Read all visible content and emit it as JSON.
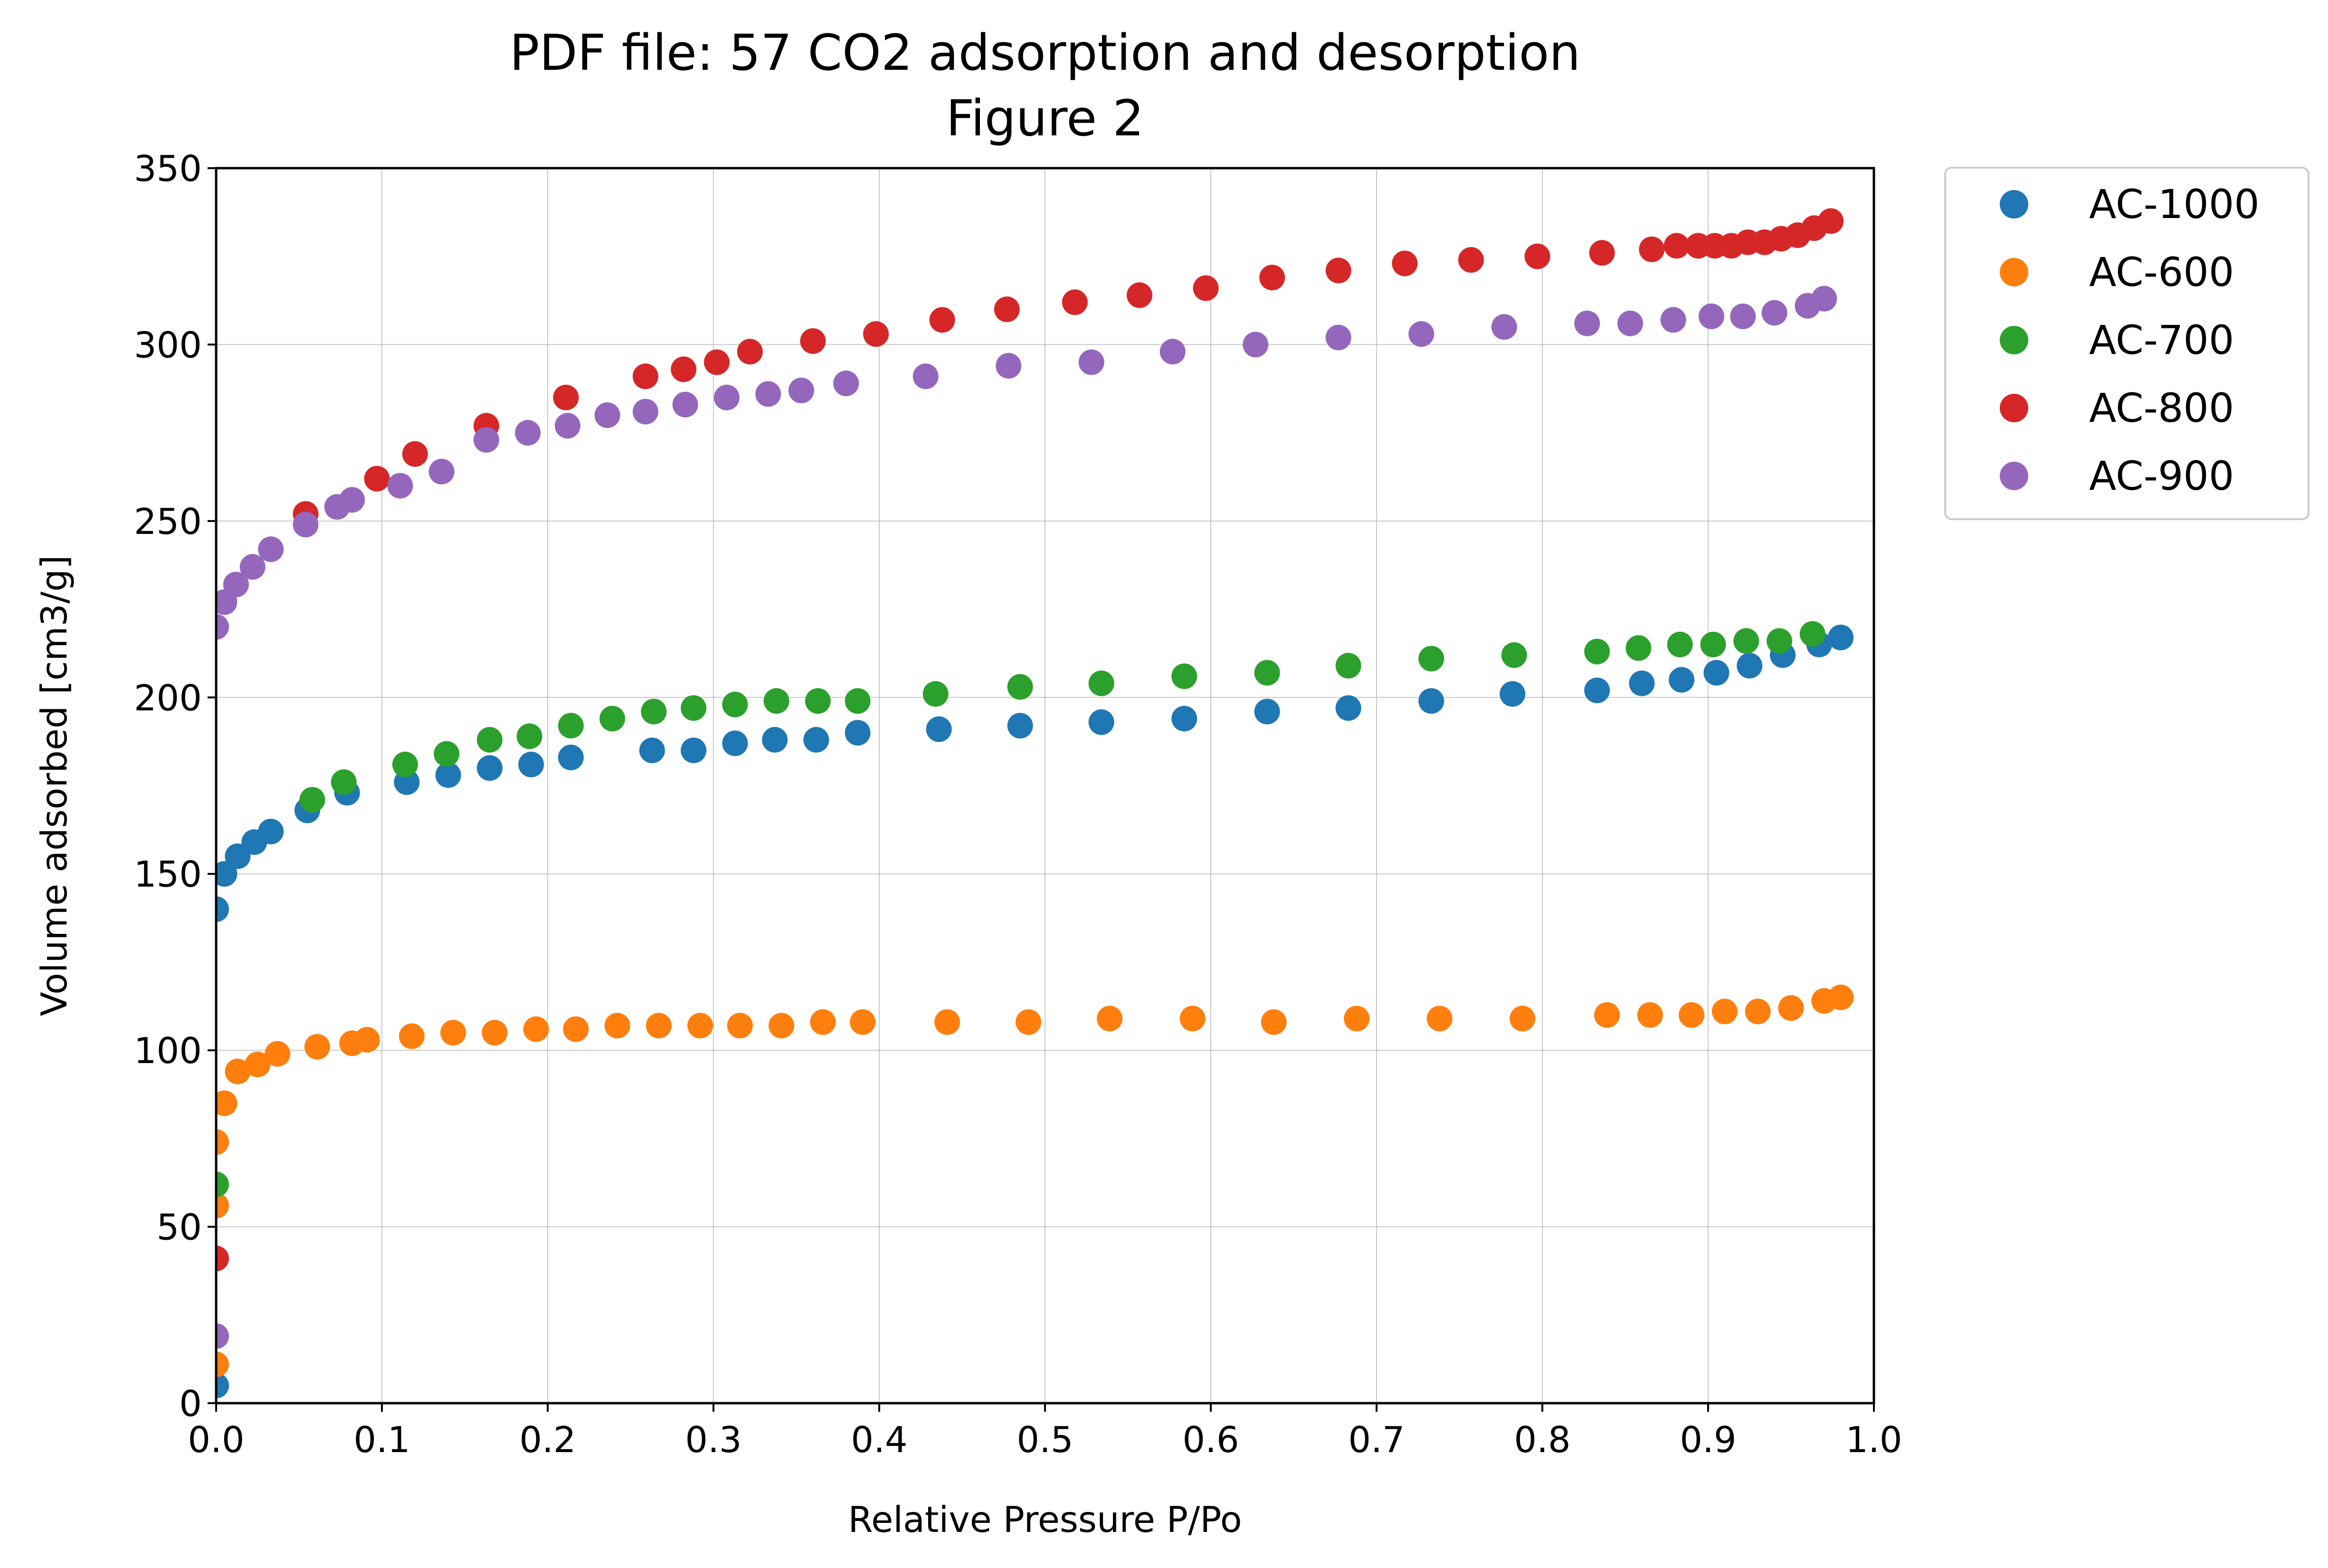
{
  "chart_data": {
    "type": "scatter",
    "title": "PDF file: 57 CO2 adsorption and desorption",
    "subtitle": "Figure 2",
    "xlabel": "Relative Pressure P/Po",
    "ylabel": "Volume adsorbed [cm3/g]",
    "xlim": [
      0.0,
      1.0
    ],
    "ylim": [
      0,
      350
    ],
    "xticks": [
      "0.0",
      "0.1",
      "0.2",
      "0.3",
      "0.4",
      "0.5",
      "0.6",
      "0.7",
      "0.8",
      "0.9",
      "1.0"
    ],
    "yticks": [
      "0",
      "50",
      "100",
      "150",
      "200",
      "250",
      "300",
      "350"
    ],
    "grid": true,
    "legend_position": "outside-top-right",
    "series": [
      {
        "name": "AC-1000",
        "color": "#1f77b4",
        "points": [
          [
            0.0,
            5
          ],
          [
            0.0,
            140
          ],
          [
            0.005,
            150
          ],
          [
            0.013,
            155
          ],
          [
            0.023,
            159
          ],
          [
            0.033,
            162
          ],
          [
            0.055,
            168
          ],
          [
            0.079,
            173
          ],
          [
            0.115,
            176
          ],
          [
            0.14,
            178
          ],
          [
            0.165,
            180
          ],
          [
            0.19,
            181
          ],
          [
            0.214,
            183
          ],
          [
            0.263,
            185
          ],
          [
            0.288,
            185
          ],
          [
            0.313,
            187
          ],
          [
            0.337,
            188
          ],
          [
            0.362,
            188
          ],
          [
            0.387,
            190
          ],
          [
            0.436,
            191
          ],
          [
            0.485,
            192
          ],
          [
            0.534,
            193
          ],
          [
            0.584,
            194
          ],
          [
            0.634,
            196
          ],
          [
            0.683,
            197
          ],
          [
            0.733,
            199
          ],
          [
            0.782,
            201
          ],
          [
            0.833,
            202
          ],
          [
            0.86,
            204
          ],
          [
            0.884,
            205
          ],
          [
            0.905,
            207
          ],
          [
            0.925,
            209
          ],
          [
            0.945,
            212
          ],
          [
            0.967,
            215
          ],
          [
            0.98,
            217
          ]
        ]
      },
      {
        "name": "AC-600",
        "color": "#ff7f0e",
        "points": [
          [
            0.0,
            11
          ],
          [
            0.0,
            56
          ],
          [
            0.0,
            74
          ],
          [
            0.005,
            85
          ],
          [
            0.013,
            94
          ],
          [
            0.025,
            96
          ],
          [
            0.037,
            99
          ],
          [
            0.061,
            101
          ],
          [
            0.082,
            102
          ],
          [
            0.091,
            103
          ],
          [
            0.118,
            104
          ],
          [
            0.143,
            105
          ],
          [
            0.168,
            105
          ],
          [
            0.193,
            106
          ],
          [
            0.217,
            106
          ],
          [
            0.242,
            107
          ],
          [
            0.267,
            107
          ],
          [
            0.292,
            107
          ],
          [
            0.316,
            107
          ],
          [
            0.341,
            107
          ],
          [
            0.366,
            108
          ],
          [
            0.39,
            108
          ],
          [
            0.441,
            108
          ],
          [
            0.49,
            108
          ],
          [
            0.539,
            109
          ],
          [
            0.589,
            109
          ],
          [
            0.638,
            108
          ],
          [
            0.688,
            109
          ],
          [
            0.738,
            109
          ],
          [
            0.788,
            109
          ],
          [
            0.839,
            110
          ],
          [
            0.865,
            110
          ],
          [
            0.89,
            110
          ],
          [
            0.91,
            111
          ],
          [
            0.93,
            111
          ],
          [
            0.95,
            112
          ],
          [
            0.97,
            114
          ],
          [
            0.98,
            115
          ]
        ]
      },
      {
        "name": "AC-700",
        "color": "#2ca02c",
        "points": [
          [
            0.0,
            62
          ],
          [
            0.058,
            171
          ],
          [
            0.077,
            176
          ],
          [
            0.114,
            181
          ],
          [
            0.139,
            184
          ],
          [
            0.165,
            188
          ],
          [
            0.189,
            189
          ],
          [
            0.214,
            192
          ],
          [
            0.239,
            194
          ],
          [
            0.264,
            196
          ],
          [
            0.288,
            197
          ],
          [
            0.313,
            198
          ],
          [
            0.338,
            199
          ],
          [
            0.363,
            199
          ],
          [
            0.387,
            199
          ],
          [
            0.434,
            201
          ],
          [
            0.485,
            203
          ],
          [
            0.534,
            204
          ],
          [
            0.584,
            206
          ],
          [
            0.634,
            207
          ],
          [
            0.683,
            209
          ],
          [
            0.733,
            211
          ],
          [
            0.783,
            212
          ],
          [
            0.833,
            213
          ],
          [
            0.858,
            214
          ],
          [
            0.883,
            215
          ],
          [
            0.903,
            215
          ],
          [
            0.923,
            216
          ],
          [
            0.943,
            216
          ],
          [
            0.963,
            218
          ]
        ]
      },
      {
        "name": "AC-800",
        "color": "#d62728",
        "points": [
          [
            0.0,
            41
          ],
          [
            0.054,
            252
          ],
          [
            0.097,
            262
          ],
          [
            0.12,
            269
          ],
          [
            0.163,
            277
          ],
          [
            0.211,
            285
          ],
          [
            0.259,
            291
          ],
          [
            0.282,
            293
          ],
          [
            0.302,
            295
          ],
          [
            0.322,
            298
          ],
          [
            0.36,
            301
          ],
          [
            0.398,
            303
          ],
          [
            0.438,
            307
          ],
          [
            0.477,
            310
          ],
          [
            0.518,
            312
          ],
          [
            0.557,
            314
          ],
          [
            0.597,
            316
          ],
          [
            0.637,
            319
          ],
          [
            0.677,
            321
          ],
          [
            0.717,
            323
          ],
          [
            0.757,
            324
          ],
          [
            0.797,
            325
          ],
          [
            0.836,
            326
          ],
          [
            0.866,
            327
          ],
          [
            0.881,
            328
          ],
          [
            0.894,
            328
          ],
          [
            0.904,
            328
          ],
          [
            0.914,
            328
          ],
          [
            0.924,
            329
          ],
          [
            0.934,
            329
          ],
          [
            0.944,
            330
          ],
          [
            0.954,
            331
          ],
          [
            0.964,
            333
          ],
          [
            0.974,
            335
          ]
        ]
      },
      {
        "name": "AC-900",
        "color": "#9467bd",
        "points": [
          [
            0.0,
            19
          ],
          [
            0.0,
            220
          ],
          [
            0.005,
            227
          ],
          [
            0.012,
            232
          ],
          [
            0.022,
            237
          ],
          [
            0.033,
            242
          ],
          [
            0.054,
            249
          ],
          [
            0.073,
            254
          ],
          [
            0.082,
            256
          ],
          [
            0.111,
            260
          ],
          [
            0.136,
            264
          ],
          [
            0.163,
            273
          ],
          [
            0.188,
            275
          ],
          [
            0.212,
            277
          ],
          [
            0.236,
            280
          ],
          [
            0.259,
            281
          ],
          [
            0.283,
            283
          ],
          [
            0.308,
            285
          ],
          [
            0.333,
            286
          ],
          [
            0.353,
            287
          ],
          [
            0.38,
            289
          ],
          [
            0.428,
            291
          ],
          [
            0.478,
            294
          ],
          [
            0.528,
            295
          ],
          [
            0.577,
            298
          ],
          [
            0.627,
            300
          ],
          [
            0.677,
            302
          ],
          [
            0.727,
            303
          ],
          [
            0.777,
            305
          ],
          [
            0.827,
            306
          ],
          [
            0.853,
            306
          ],
          [
            0.879,
            307
          ],
          [
            0.902,
            308
          ],
          [
            0.921,
            308
          ],
          [
            0.94,
            309
          ],
          [
            0.96,
            311
          ],
          [
            0.97,
            313
          ]
        ]
      }
    ]
  }
}
